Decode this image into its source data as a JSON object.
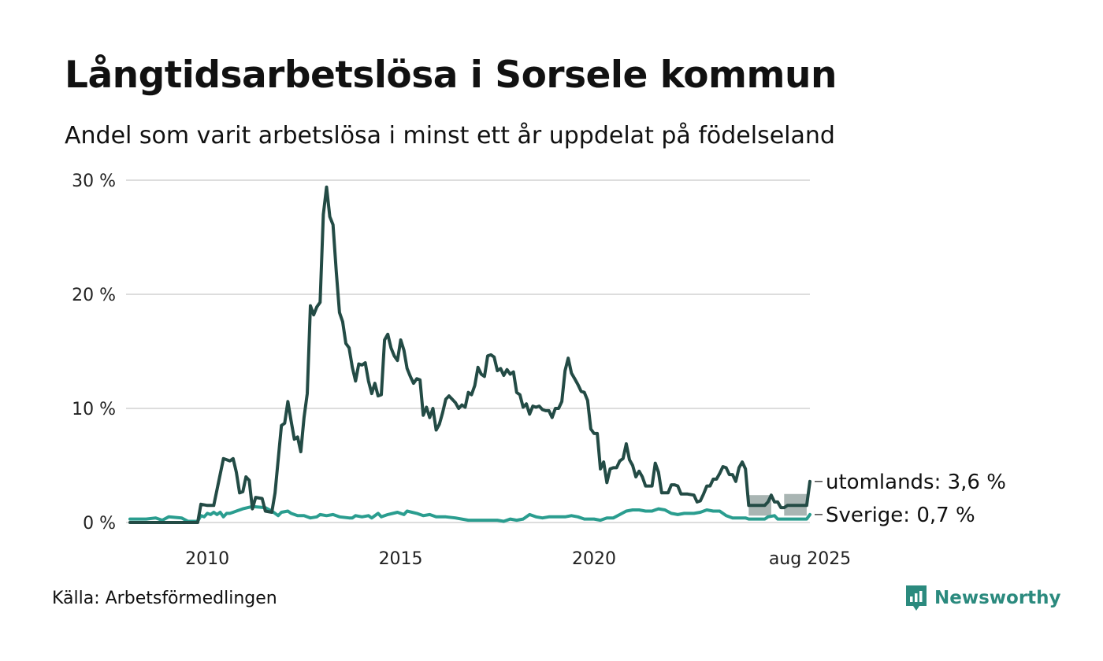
{
  "header": {
    "title": "Långtidsarbetslösa i Sorsele kommun",
    "subtitle": "Andel som varit arbetslösa i minst ett år uppdelat på födelseland"
  },
  "footer": {
    "source": "Källa: Arbetsförmedlingen",
    "brand": "Newsworthy",
    "brand_icon": "newsworthy-logo-icon"
  },
  "colors": {
    "utomlands": "#234b45",
    "sverige": "#2a9d8f",
    "uncertainty_band": "#9aa8a6",
    "grid": "#dddddd"
  },
  "chart_data": {
    "type": "line",
    "x_axis": {
      "range": [
        "2008-01",
        "2025-08"
      ],
      "ticks": [
        {
          "date": "2010-01",
          "label": "2010"
        },
        {
          "date": "2015-01",
          "label": "2015"
        },
        {
          "date": "2020-01",
          "label": "2020"
        },
        {
          "date": "2025-08",
          "label": "aug 2025"
        }
      ]
    },
    "y_axis": {
      "range": [
        0,
        30
      ],
      "ticks": [
        {
          "value": 0,
          "label": "0 %"
        },
        {
          "value": 10,
          "label": "10 %"
        },
        {
          "value": 20,
          "label": "20 %"
        },
        {
          "value": 30,
          "label": "30 %"
        }
      ],
      "grid": true
    },
    "series": [
      {
        "name": "utomlands",
        "end_label": "utomlands: 3,6 %",
        "points": [
          [
            "2008-01",
            0
          ],
          [
            "2009-01",
            0
          ],
          [
            "2009-10",
            0
          ],
          [
            "2009-11",
            1.6
          ],
          [
            "2010-01",
            1.5
          ],
          [
            "2010-03",
            1.5
          ],
          [
            "2010-06",
            5.6
          ],
          [
            "2010-08",
            5.4
          ],
          [
            "2010-09",
            5.6
          ],
          [
            "2010-10",
            4.4
          ],
          [
            "2010-11",
            2.6
          ],
          [
            "2010-12",
            2.7
          ],
          [
            "2011-01",
            4.0
          ],
          [
            "2011-02",
            3.7
          ],
          [
            "2011-03",
            1.2
          ],
          [
            "2011-04",
            2.2
          ],
          [
            "2011-06",
            2.1
          ],
          [
            "2011-07",
            1.0
          ],
          [
            "2011-09",
            0.9
          ],
          [
            "2011-10",
            2.6
          ],
          [
            "2011-12",
            8.5
          ],
          [
            "2012-01",
            8.7
          ],
          [
            "2012-02",
            10.6
          ],
          [
            "2012-03",
            8.9
          ],
          [
            "2012-04",
            7.3
          ],
          [
            "2012-05",
            7.5
          ],
          [
            "2012-06",
            6.2
          ],
          [
            "2012-07",
            9.2
          ],
          [
            "2012-08",
            11.3
          ],
          [
            "2012-09",
            19.0
          ],
          [
            "2012-10",
            18.2
          ],
          [
            "2012-11",
            18.9
          ],
          [
            "2012-12",
            19.3
          ],
          [
            "2013-01",
            27.0
          ],
          [
            "2013-02",
            29.4
          ],
          [
            "2013-03",
            26.8
          ],
          [
            "2013-04",
            26.1
          ],
          [
            "2013-05",
            22.0
          ],
          [
            "2013-06",
            18.4
          ],
          [
            "2013-07",
            17.6
          ],
          [
            "2013-08",
            15.7
          ],
          [
            "2013-09",
            15.3
          ],
          [
            "2013-10",
            13.6
          ],
          [
            "2013-11",
            12.4
          ],
          [
            "2013-12",
            13.9
          ],
          [
            "2014-01",
            13.8
          ],
          [
            "2014-02",
            14.0
          ],
          [
            "2014-03",
            12.4
          ],
          [
            "2014-04",
            11.3
          ],
          [
            "2014-05",
            12.2
          ],
          [
            "2014-06",
            11.1
          ],
          [
            "2014-07",
            11.2
          ],
          [
            "2014-08",
            16.0
          ],
          [
            "2014-09",
            16.5
          ],
          [
            "2014-10",
            15.3
          ],
          [
            "2014-11",
            14.6
          ],
          [
            "2014-12",
            14.2
          ],
          [
            "2015-01",
            16.0
          ],
          [
            "2015-02",
            15.1
          ],
          [
            "2015-03",
            13.5
          ],
          [
            "2015-04",
            12.8
          ],
          [
            "2015-05",
            12.2
          ],
          [
            "2015-06",
            12.6
          ],
          [
            "2015-07",
            12.5
          ],
          [
            "2015-08",
            9.4
          ],
          [
            "2015-09",
            10.1
          ],
          [
            "2015-10",
            9.2
          ],
          [
            "2015-11",
            10.0
          ],
          [
            "2015-12",
            8.1
          ],
          [
            "2016-01",
            8.6
          ],
          [
            "2016-02",
            9.6
          ],
          [
            "2016-03",
            10.8
          ],
          [
            "2016-04",
            11.1
          ],
          [
            "2016-05",
            10.8
          ],
          [
            "2016-06",
            10.5
          ],
          [
            "2016-07",
            10.0
          ],
          [
            "2016-08",
            10.3
          ],
          [
            "2016-09",
            10.1
          ],
          [
            "2016-10",
            11.4
          ],
          [
            "2016-11",
            11.2
          ],
          [
            "2016-12",
            12.0
          ],
          [
            "2017-01",
            13.6
          ],
          [
            "2017-02",
            13.0
          ],
          [
            "2017-03",
            12.8
          ],
          [
            "2017-04",
            14.6
          ],
          [
            "2017-05",
            14.7
          ],
          [
            "2017-06",
            14.5
          ],
          [
            "2017-07",
            13.3
          ],
          [
            "2017-08",
            13.5
          ],
          [
            "2017-09",
            12.9
          ],
          [
            "2017-10",
            13.4
          ],
          [
            "2017-11",
            13.0
          ],
          [
            "2017-12",
            13.2
          ],
          [
            "2018-01",
            11.4
          ],
          [
            "2018-02",
            11.2
          ],
          [
            "2018-03",
            10.1
          ],
          [
            "2018-04",
            10.4
          ],
          [
            "2018-05",
            9.5
          ],
          [
            "2018-06",
            10.2
          ],
          [
            "2018-07",
            10.1
          ],
          [
            "2018-08",
            10.2
          ],
          [
            "2018-09",
            9.9
          ],
          [
            "2018-10",
            9.8
          ],
          [
            "2018-11",
            9.8
          ],
          [
            "2018-12",
            9.2
          ],
          [
            "2019-01",
            10.0
          ],
          [
            "2019-02",
            10.0
          ],
          [
            "2019-03",
            10.6
          ],
          [
            "2019-04",
            13.3
          ],
          [
            "2019-05",
            14.4
          ],
          [
            "2019-06",
            13.1
          ],
          [
            "2019-07",
            12.6
          ],
          [
            "2019-08",
            12.1
          ],
          [
            "2019-09",
            11.5
          ],
          [
            "2019-10",
            11.4
          ],
          [
            "2019-11",
            10.7
          ],
          [
            "2019-12",
            8.2
          ],
          [
            "2020-01",
            7.8
          ],
          [
            "2020-02",
            7.8
          ],
          [
            "2020-03",
            4.7
          ],
          [
            "2020-04",
            5.3
          ],
          [
            "2020-05",
            3.5
          ],
          [
            "2020-06",
            4.7
          ],
          [
            "2020-07",
            4.8
          ],
          [
            "2020-08",
            4.8
          ],
          [
            "2020-09",
            5.4
          ],
          [
            "2020-10",
            5.6
          ],
          [
            "2020-11",
            6.9
          ],
          [
            "2020-12",
            5.5
          ],
          [
            "2021-01",
            5.0
          ],
          [
            "2021-02",
            4.0
          ],
          [
            "2021-03",
            4.5
          ],
          [
            "2021-04",
            4.0
          ],
          [
            "2021-05",
            3.2
          ],
          [
            "2021-06",
            3.2
          ],
          [
            "2021-07",
            3.2
          ],
          [
            "2021-08",
            5.2
          ],
          [
            "2021-09",
            4.4
          ],
          [
            "2021-10",
            2.6
          ],
          [
            "2021-11",
            2.6
          ],
          [
            "2021-12",
            2.6
          ],
          [
            "2022-01",
            3.3
          ],
          [
            "2022-02",
            3.3
          ],
          [
            "2022-03",
            3.2
          ],
          [
            "2022-04",
            2.5
          ],
          [
            "2022-06",
            2.5
          ],
          [
            "2022-08",
            2.4
          ],
          [
            "2022-09",
            1.8
          ],
          [
            "2022-10",
            1.9
          ],
          [
            "2022-11",
            2.5
          ],
          [
            "2022-12",
            3.2
          ],
          [
            "2023-01",
            3.2
          ],
          [
            "2023-02",
            3.8
          ],
          [
            "2023-03",
            3.8
          ],
          [
            "2023-04",
            4.3
          ],
          [
            "2023-05",
            4.9
          ],
          [
            "2023-06",
            4.8
          ],
          [
            "2023-07",
            4.2
          ],
          [
            "2023-08",
            4.2
          ],
          [
            "2023-09",
            3.6
          ],
          [
            "2023-10",
            4.8
          ],
          [
            "2023-11",
            5.3
          ],
          [
            "2023-12",
            4.7
          ],
          [
            "2024-01",
            1.5
          ],
          [
            "2024-02",
            1.5
          ],
          [
            "2024-06",
            1.5
          ],
          [
            "2024-07",
            1.8
          ],
          [
            "2024-08",
            2.4
          ],
          [
            "2024-09",
            1.8
          ],
          [
            "2024-10",
            1.8
          ],
          [
            "2024-11",
            1.3
          ],
          [
            "2024-12",
            1.3
          ],
          [
            "2025-01",
            1.5
          ],
          [
            "2025-07",
            1.5
          ],
          [
            "2025-08",
            3.6
          ]
        ]
      },
      {
        "name": "Sverige",
        "end_label": "Sverige: 0,7 %",
        "points": [
          [
            "2008-01",
            0.3
          ],
          [
            "2008-06",
            0.3
          ],
          [
            "2008-09",
            0.4
          ],
          [
            "2008-11",
            0.2
          ],
          [
            "2009-01",
            0.5
          ],
          [
            "2009-05",
            0.4
          ],
          [
            "2009-07",
            0.1
          ],
          [
            "2009-10",
            0.1
          ],
          [
            "2009-11",
            0.6
          ],
          [
            "2009-12",
            0.5
          ],
          [
            "2010-01",
            0.8
          ],
          [
            "2010-02",
            0.7
          ],
          [
            "2010-03",
            0.9
          ],
          [
            "2010-04",
            0.7
          ],
          [
            "2010-05",
            0.9
          ],
          [
            "2010-06",
            0.5
          ],
          [
            "2010-07",
            0.8
          ],
          [
            "2010-08",
            0.8
          ],
          [
            "2010-09",
            0.9
          ],
          [
            "2010-10",
            1.0
          ],
          [
            "2010-12",
            1.2
          ],
          [
            "2011-03",
            1.4
          ],
          [
            "2011-07",
            1.3
          ],
          [
            "2011-09",
            1.0
          ],
          [
            "2011-10",
            0.8
          ],
          [
            "2011-11",
            0.6
          ],
          [
            "2011-12",
            0.9
          ],
          [
            "2012-02",
            1.0
          ],
          [
            "2012-03",
            0.8
          ],
          [
            "2012-05",
            0.6
          ],
          [
            "2012-07",
            0.6
          ],
          [
            "2012-08",
            0.5
          ],
          [
            "2012-09",
            0.4
          ],
          [
            "2012-11",
            0.5
          ],
          [
            "2012-12",
            0.7
          ],
          [
            "2013-02",
            0.6
          ],
          [
            "2013-04",
            0.7
          ],
          [
            "2013-06",
            0.5
          ],
          [
            "2013-09",
            0.4
          ],
          [
            "2013-10",
            0.4
          ],
          [
            "2013-11",
            0.6
          ],
          [
            "2014-01",
            0.5
          ],
          [
            "2014-03",
            0.6
          ],
          [
            "2014-04",
            0.4
          ],
          [
            "2014-06",
            0.8
          ],
          [
            "2014-07",
            0.5
          ],
          [
            "2014-09",
            0.7
          ],
          [
            "2014-12",
            0.9
          ],
          [
            "2015-02",
            0.7
          ],
          [
            "2015-03",
            1.0
          ],
          [
            "2015-06",
            0.8
          ],
          [
            "2015-08",
            0.6
          ],
          [
            "2015-10",
            0.7
          ],
          [
            "2015-12",
            0.5
          ],
          [
            "2016-03",
            0.5
          ],
          [
            "2016-06",
            0.4
          ],
          [
            "2016-10",
            0.2
          ],
          [
            "2017-01",
            0.2
          ],
          [
            "2017-07",
            0.2
          ],
          [
            "2017-09",
            0.1
          ],
          [
            "2017-11",
            0.3
          ],
          [
            "2018-01",
            0.2
          ],
          [
            "2018-03",
            0.3
          ],
          [
            "2018-05",
            0.7
          ],
          [
            "2018-07",
            0.5
          ],
          [
            "2018-09",
            0.4
          ],
          [
            "2018-11",
            0.5
          ],
          [
            "2019-01",
            0.5
          ],
          [
            "2019-04",
            0.5
          ],
          [
            "2019-06",
            0.6
          ],
          [
            "2019-08",
            0.5
          ],
          [
            "2019-10",
            0.3
          ],
          [
            "2020-01",
            0.3
          ],
          [
            "2020-03",
            0.2
          ],
          [
            "2020-05",
            0.4
          ],
          [
            "2020-07",
            0.4
          ],
          [
            "2020-09",
            0.7
          ],
          [
            "2020-11",
            1.0
          ],
          [
            "2021-01",
            1.1
          ],
          [
            "2021-03",
            1.1
          ],
          [
            "2021-05",
            1.0
          ],
          [
            "2021-07",
            1.0
          ],
          [
            "2021-08",
            1.1
          ],
          [
            "2021-09",
            1.2
          ],
          [
            "2021-11",
            1.1
          ],
          [
            "2022-01",
            0.8
          ],
          [
            "2022-03",
            0.7
          ],
          [
            "2022-05",
            0.8
          ],
          [
            "2022-08",
            0.8
          ],
          [
            "2022-10",
            0.9
          ],
          [
            "2022-12",
            1.1
          ],
          [
            "2023-02",
            1.0
          ],
          [
            "2023-04",
            1.0
          ],
          [
            "2023-06",
            0.6
          ],
          [
            "2023-08",
            0.4
          ],
          [
            "2023-10",
            0.4
          ],
          [
            "2023-12",
            0.4
          ],
          [
            "2024-01",
            0.3
          ],
          [
            "2024-06",
            0.3
          ],
          [
            "2024-07",
            0.5
          ],
          [
            "2024-09",
            0.6
          ],
          [
            "2024-10",
            0.3
          ],
          [
            "2025-07",
            0.3
          ],
          [
            "2025-08",
            0.7
          ]
        ]
      }
    ],
    "uncertainty_bands": [
      {
        "series": "utomlands",
        "start": "2024-01",
        "end": "2024-08",
        "low": 0.6,
        "high": 2.4
      },
      {
        "series": "utomlands",
        "start": "2024-12",
        "end": "2025-07",
        "low": 0.6,
        "high": 2.5
      }
    ]
  }
}
